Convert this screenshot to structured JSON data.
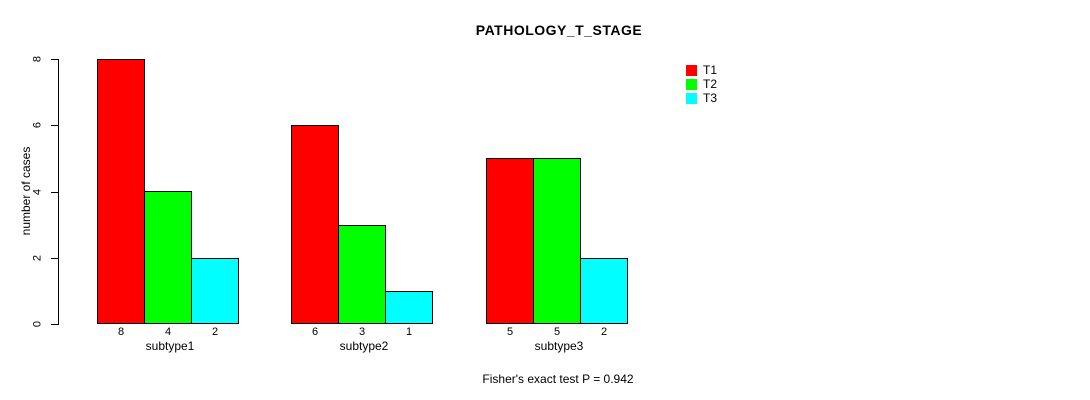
{
  "chart_data": {
    "type": "bar",
    "title": "PATHOLOGY_T_STAGE",
    "ylabel": "number of cases",
    "xlabel": "",
    "categories": [
      "subtype1",
      "subtype2",
      "subtype3"
    ],
    "series": [
      {
        "name": "T1",
        "color": "#ff0000",
        "values": [
          8,
          6,
          5
        ]
      },
      {
        "name": "T2",
        "color": "#00ff00",
        "values": [
          4,
          3,
          5
        ]
      },
      {
        "name": "T3",
        "color": "#00ffff",
        "values": [
          2,
          1,
          2
        ]
      }
    ],
    "ylim": [
      0,
      8
    ],
    "yticks": [
      0,
      2,
      4,
      6,
      8
    ],
    "grid": false,
    "legend_position": "top-right",
    "bar_border_color": "#000000",
    "annotation": "Fisher's exact test P = 0.942"
  }
}
